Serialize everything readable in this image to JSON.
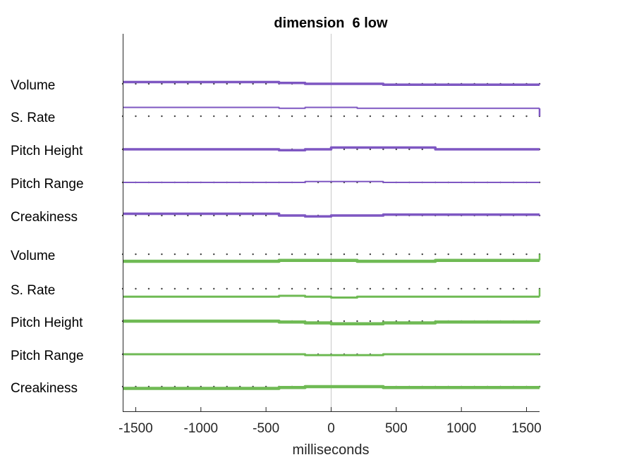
{
  "chart_data": {
    "type": "line",
    "title": "dimension  6 low",
    "xlabel": "milliseconds",
    "ylabel": "",
    "xlim": [
      -1600,
      1600
    ],
    "xticks": [
      -1500,
      -1000,
      -500,
      0,
      500,
      1000,
      1500
    ],
    "xtick_labels": [
      "-1500",
      "-1000",
      "-500",
      "0",
      "500",
      "1000",
      "1500"
    ],
    "zero_line": true,
    "grid": false,
    "dot_spacing_ms": 100,
    "color_top": "#7e57c2",
    "color_bottom": "#6fba54",
    "x": [
      -1600,
      -800,
      -400,
      -200,
      0,
      200,
      400,
      800,
      1600
    ],
    "series": [
      {
        "name": "Volume",
        "group": "top",
        "values": [
          -0.1,
          -0.1,
          -0.05,
          0,
          0,
          0,
          0.05,
          0.05,
          0.05
        ],
        "width": 3.5
      },
      {
        "name": "S. Rate",
        "group": "top",
        "values": [
          -0.5,
          -0.5,
          -0.45,
          -0.5,
          -0.5,
          -0.45,
          -0.45,
          -0.45,
          -0.45
        ],
        "width": 2
      },
      {
        "name": "Pitch Height",
        "group": "top",
        "values": [
          0,
          0,
          0.05,
          0,
          -0.1,
          -0.1,
          -0.1,
          0,
          0
        ],
        "width": 3.5
      },
      {
        "name": "Pitch Range",
        "group": "top",
        "values": [
          0,
          0,
          0,
          -0.05,
          -0.05,
          -0.05,
          0,
          0,
          0
        ],
        "width": 2
      },
      {
        "name": "Creakiness",
        "group": "top",
        "values": [
          -0.1,
          -0.1,
          0,
          0.05,
          0,
          0,
          -0.05,
          -0.05,
          -0.05
        ],
        "width": 3.5
      },
      {
        "name": "Volume",
        "group": "bottom",
        "values": [
          0.4,
          0.4,
          0.35,
          0.35,
          0.35,
          0.4,
          0.4,
          0.35,
          0.35
        ],
        "width": 4.5
      },
      {
        "name": "S. Rate",
        "group": "bottom",
        "values": [
          0.45,
          0.45,
          0.4,
          0.45,
          0.5,
          0.45,
          0.45,
          0.45,
          0.45
        ],
        "width": 3
      },
      {
        "name": "Pitch Height",
        "group": "bottom",
        "values": [
          0,
          0,
          0.05,
          0.1,
          0.15,
          0.15,
          0.1,
          0.05,
          0.05
        ],
        "width": 4.5
      },
      {
        "name": "Pitch Range",
        "group": "bottom",
        "values": [
          0,
          0,
          0,
          0.05,
          0.05,
          0.05,
          0,
          0,
          0
        ],
        "width": 3
      },
      {
        "name": "Creakiness",
        "group": "bottom",
        "values": [
          0.1,
          0.1,
          0.05,
          0,
          0,
          0,
          0.05,
          0.05,
          0.05
        ],
        "width": 4.5
      }
    ]
  }
}
